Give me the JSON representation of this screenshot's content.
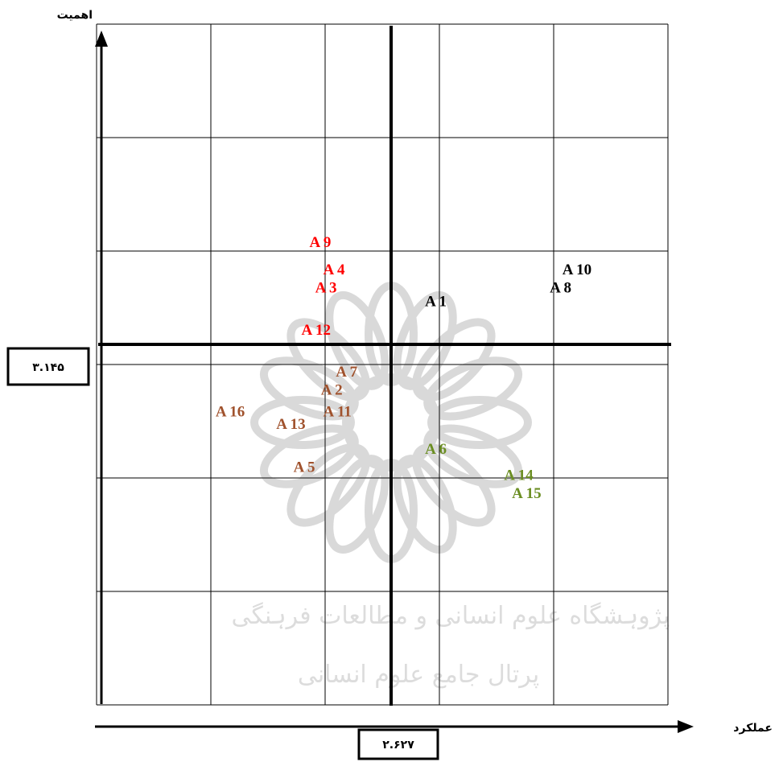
{
  "chart_data": {
    "type": "scatter",
    "xlabel": "عملکرد",
    "ylabel": "اهمیت",
    "x_threshold_label": "۲.۶۲۷",
    "y_threshold_label": "۳.۱۴۵",
    "grid": true,
    "watermark": {
      "line1": "پژوہشگاه علوم انسانی و مطالعات فرہنگی",
      "line2": "پرتال جامع علوم انسانی"
    },
    "colors": {
      "red": "#ff0000",
      "black": "#000000",
      "brown": "#a0522d",
      "green": "#6b8e23"
    },
    "points": [
      {
        "label": "A 9",
        "x": 1.86,
        "y": 4.02,
        "color": "red"
      },
      {
        "label": "A 4",
        "x": 1.98,
        "y": 3.78,
        "color": "red"
      },
      {
        "label": "A 3",
        "x": 1.91,
        "y": 3.62,
        "color": "red"
      },
      {
        "label": "A 12",
        "x": 1.79,
        "y": 3.25,
        "color": "red"
      },
      {
        "label": "A 1",
        "x": 2.87,
        "y": 3.5,
        "color": "black"
      },
      {
        "label": "A 10",
        "x": 4.07,
        "y": 3.78,
        "color": "black"
      },
      {
        "label": "A 8",
        "x": 3.96,
        "y": 3.62,
        "color": "black"
      },
      {
        "label": "A 7",
        "x": 2.09,
        "y": 2.88,
        "color": "brown"
      },
      {
        "label": "A 2",
        "x": 1.96,
        "y": 2.72,
        "color": "brown"
      },
      {
        "label": "A 11",
        "x": 1.98,
        "y": 2.53,
        "color": "brown"
      },
      {
        "label": "A 16",
        "x": 1.04,
        "y": 2.53,
        "color": "brown"
      },
      {
        "label": "A 13",
        "x": 1.57,
        "y": 2.42,
        "color": "brown"
      },
      {
        "label": "A 5",
        "x": 1.72,
        "y": 2.04,
        "color": "brown"
      },
      {
        "label": "A 6",
        "x": 2.87,
        "y": 2.2,
        "color": "green"
      },
      {
        "label": "A 14",
        "x": 3.56,
        "y": 1.97,
        "color": "green"
      },
      {
        "label": "A 15",
        "x": 3.63,
        "y": 1.81,
        "color": "green"
      }
    ]
  }
}
